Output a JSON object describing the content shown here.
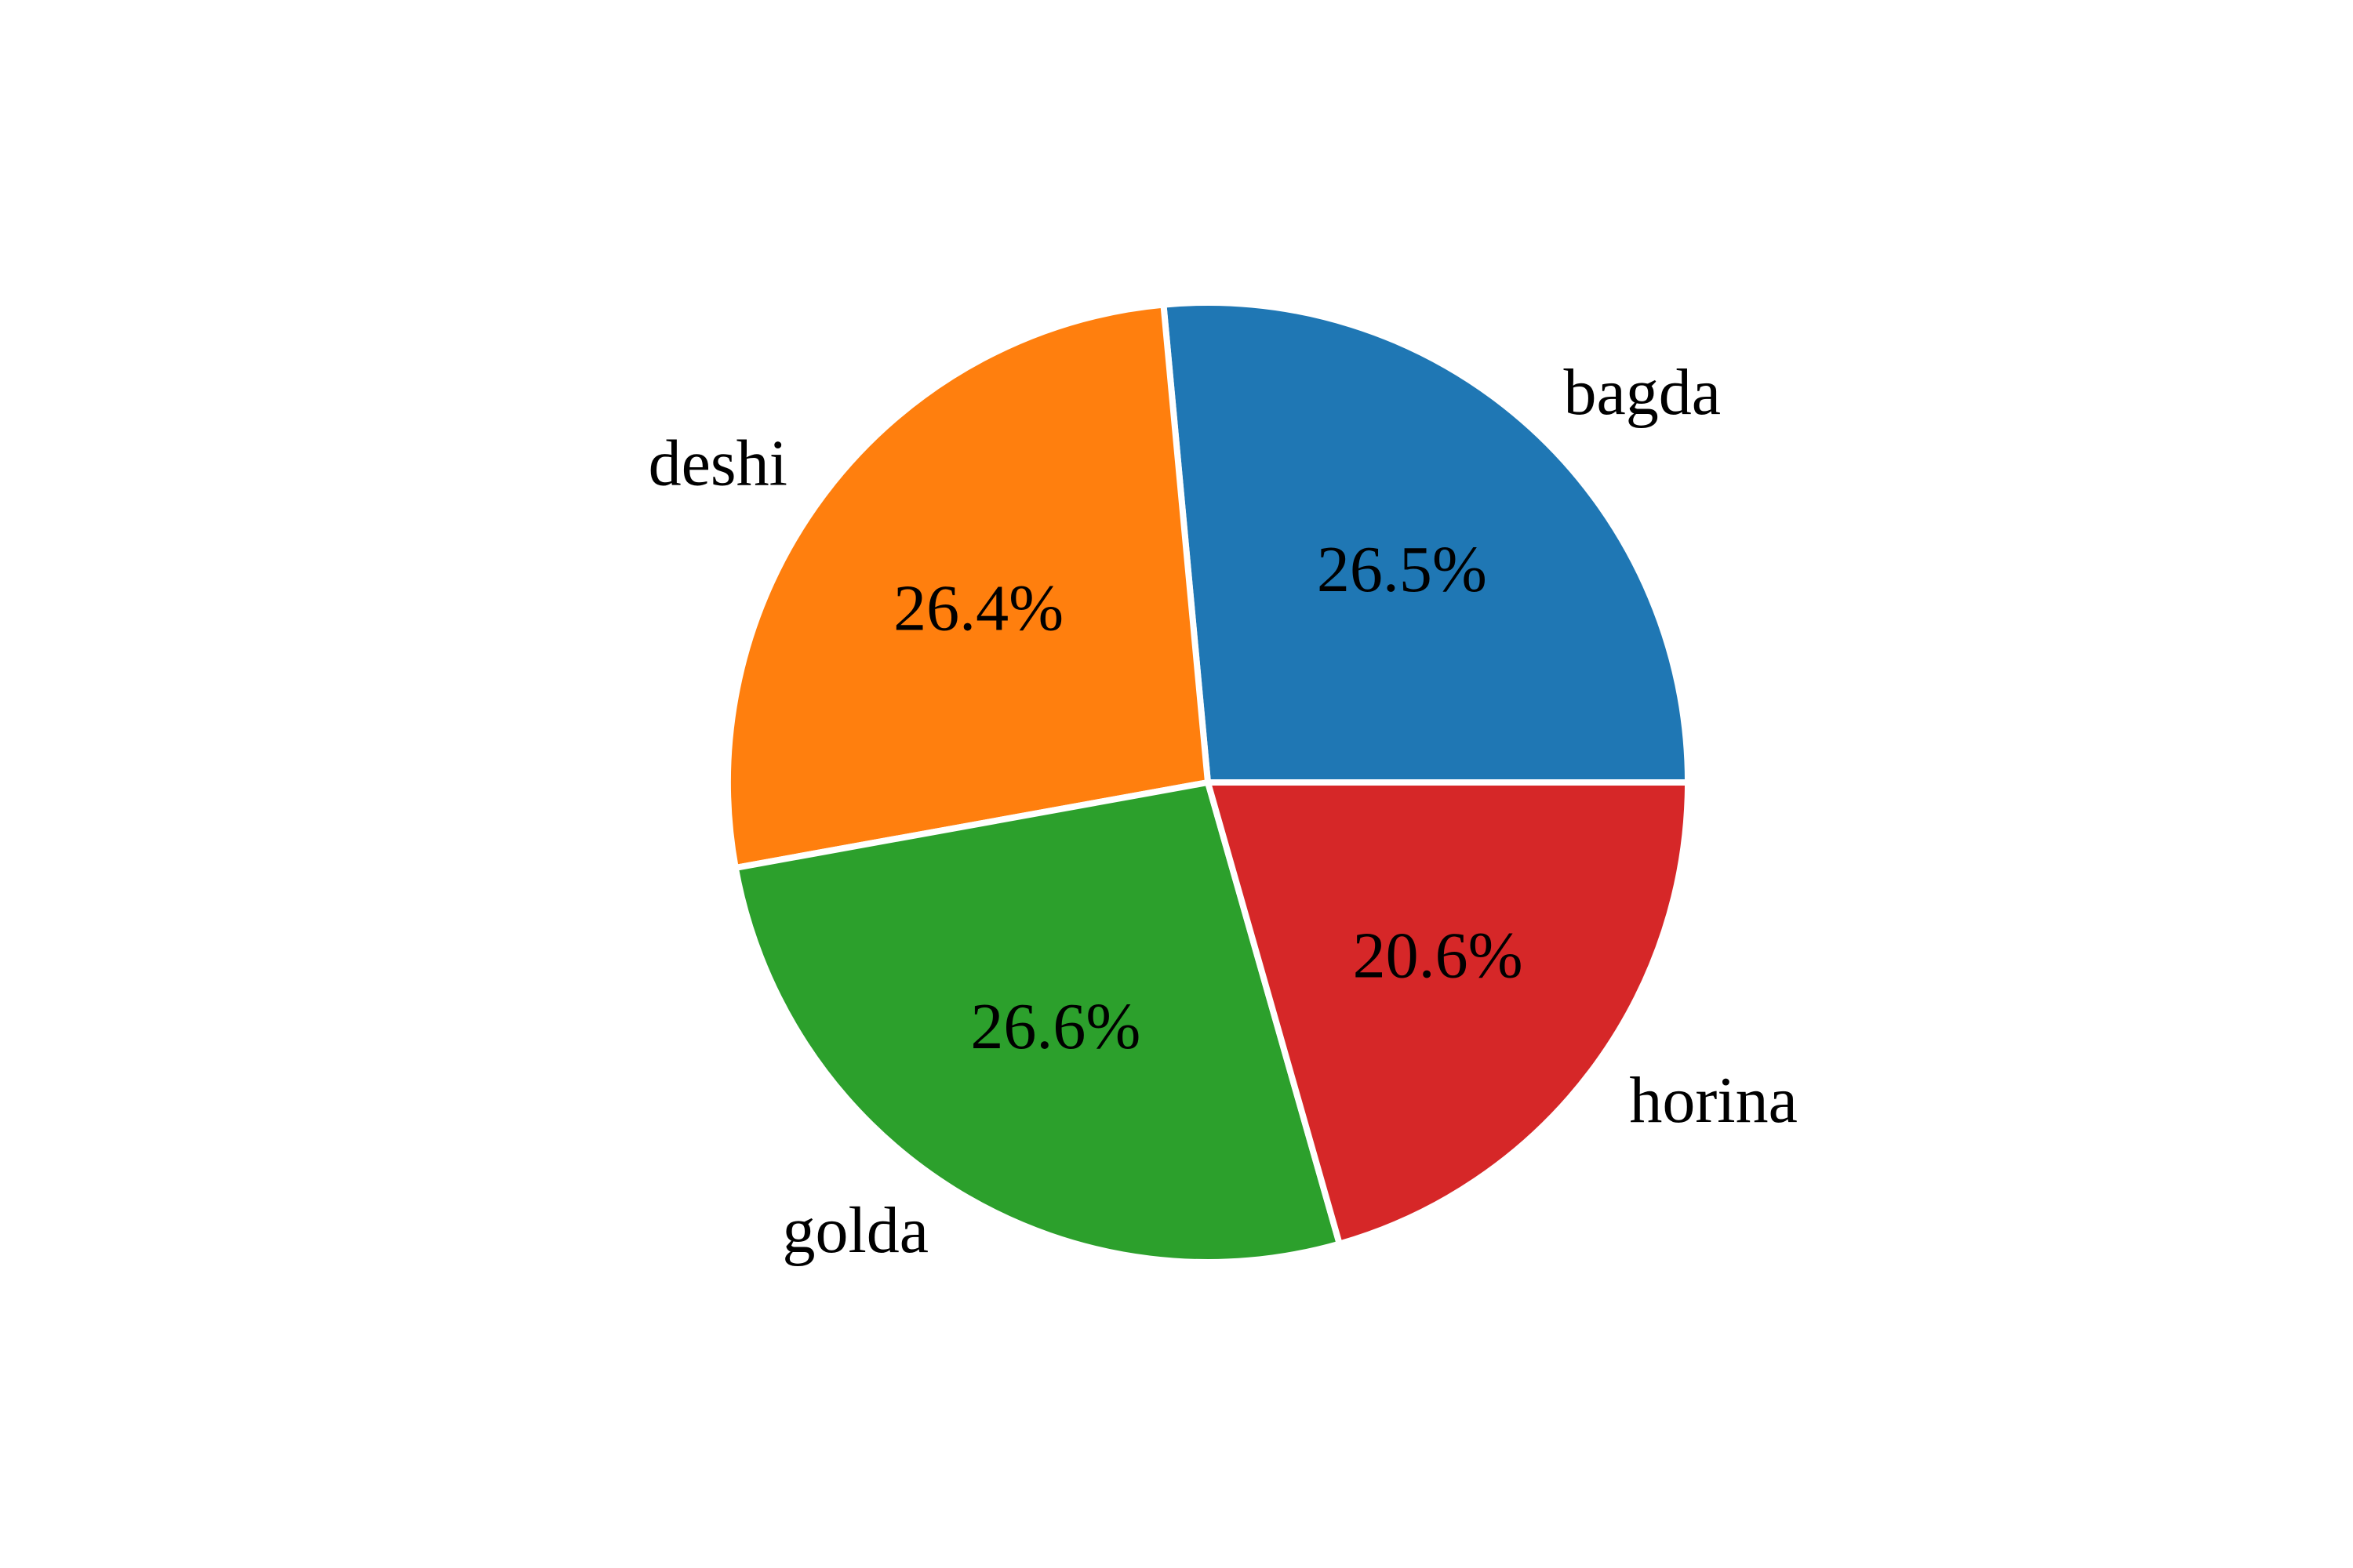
{
  "chart_data": {
    "type": "pie",
    "title": "",
    "start_angle_deg": 0,
    "direction": "counterclockwise",
    "slices": [
      {
        "label": "bagda",
        "percent_label": "26.5%",
        "value": 26.5,
        "color": "#1f77b4"
      },
      {
        "label": "deshi",
        "percent_label": "26.4%",
        "value": 26.4,
        "color": "#ff7f0e"
      },
      {
        "label": "golda",
        "percent_label": "26.6%",
        "value": 26.6,
        "color": "#2ca02c"
      },
      {
        "label": "horina",
        "percent_label": "20.6%",
        "value": 20.6,
        "color": "#d62728"
      }
    ],
    "wedge_edge_color": "#ffffff",
    "legend": "none",
    "grid": false
  }
}
